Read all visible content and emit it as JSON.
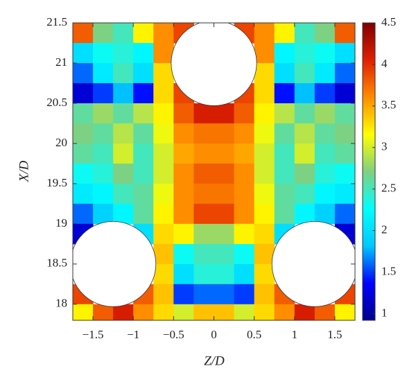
{
  "chart_data": {
    "type": "contour",
    "xlabel": "Z/D",
    "ylabel": "X/D",
    "xlim": [
      -1.75,
      1.75
    ],
    "ylim": [
      17.8,
      21.5
    ],
    "xticks": [
      {
        "value": -1.5,
        "label": "−1.5"
      },
      {
        "value": -1,
        "label": "−1"
      },
      {
        "value": -0.5,
        "label": "−0.5"
      },
      0,
      0.5,
      1,
      1.5
    ],
    "yticks": [
      18,
      18.5,
      19,
      19.5,
      20,
      20.5,
      21,
      21.5
    ],
    "clim": [
      0.92,
      4.5
    ],
    "cticks": [
      1,
      1.5,
      2,
      2.5,
      3,
      3.5,
      4,
      4.5
    ],
    "colormap": [
      "#00008f",
      "#0000ff",
      "#00c8ff",
      "#00ffff",
      "#80d080",
      "#ffff00",
      "#ff8c00",
      "#e02000",
      "#7f0000"
    ],
    "x": [
      -1.625,
      -1.375,
      -1.125,
      -0.875,
      -0.625,
      -0.375,
      -0.125,
      0.125,
      0.375,
      0.625,
      0.875,
      1.125,
      1.375,
      1.625
    ],
    "y": [
      21.375,
      21.125,
      20.875,
      20.625,
      20.375,
      20.125,
      19.875,
      19.625,
      19.375,
      19.125,
      18.875,
      18.625,
      18.375,
      18.125,
      17.875
    ],
    "z": [
      [
        3.8,
        2.7,
        2.5,
        3.2,
        3.6,
        3.9,
        null,
        null,
        3.9,
        3.6,
        3.2,
        2.5,
        2.7,
        3.8
      ],
      [
        2.0,
        2.3,
        2.4,
        2.2,
        3.6,
        null,
        null,
        null,
        null,
        3.6,
        2.2,
        2.4,
        2.3,
        2.0
      ],
      [
        1.6,
        2.1,
        2.5,
        2.0,
        3.3,
        null,
        null,
        null,
        null,
        3.3,
        2.0,
        2.5,
        2.1,
        1.6
      ],
      [
        1.2,
        1.5,
        1.8,
        1.4,
        3.3,
        3.9,
        null,
        null,
        3.9,
        3.3,
        1.4,
        1.8,
        1.5,
        1.2
      ],
      [
        2.6,
        2.8,
        2.6,
        2.9,
        3.2,
        3.8,
        4.1,
        4.1,
        3.8,
        3.2,
        2.9,
        2.6,
        2.8,
        2.6
      ],
      [
        2.7,
        2.6,
        2.9,
        2.6,
        3.1,
        3.6,
        3.7,
        3.7,
        3.6,
        3.1,
        2.6,
        2.9,
        2.6,
        2.7
      ],
      [
        2.6,
        2.5,
        3.0,
        2.5,
        3.0,
        3.5,
        3.6,
        3.6,
        3.5,
        3.0,
        2.5,
        3.0,
        2.5,
        2.6
      ],
      [
        2.3,
        2.4,
        2.7,
        2.5,
        3.0,
        3.6,
        3.8,
        3.8,
        3.6,
        3.0,
        2.5,
        2.7,
        2.4,
        2.3
      ],
      [
        2.1,
        2.2,
        2.5,
        2.6,
        3.1,
        3.6,
        3.7,
        3.7,
        3.6,
        3.1,
        2.6,
        2.5,
        2.2,
        2.1
      ],
      [
        1.6,
        1.9,
        2.2,
        2.6,
        3.2,
        3.6,
        3.9,
        3.9,
        3.6,
        3.2,
        2.6,
        2.2,
        1.9,
        1.6
      ],
      [
        1.2,
        null,
        null,
        2.0,
        3.3,
        3.2,
        2.8,
        2.8,
        3.2,
        3.3,
        2.0,
        null,
        null,
        1.2
      ],
      [
        null,
        null,
        null,
        null,
        3.4,
        2.3,
        2.5,
        2.5,
        2.3,
        3.4,
        null,
        null,
        null,
        null
      ],
      [
        null,
        null,
        null,
        null,
        3.3,
        2.0,
        2.4,
        2.4,
        2.0,
        3.3,
        null,
        null,
        null,
        null
      ],
      [
        3.9,
        null,
        null,
        3.8,
        3.4,
        1.5,
        1.6,
        1.6,
        1.5,
        3.4,
        3.8,
        null,
        null,
        3.9
      ],
      [
        3.2,
        3.8,
        4.1,
        3.6,
        3.3,
        3.0,
        3.4,
        3.4,
        3.0,
        3.3,
        3.6,
        4.1,
        3.8,
        3.2
      ]
    ],
    "cylinders": [
      {
        "x": 0,
        "y": 21,
        "r": 0.53
      },
      {
        "x": -1.25,
        "y": 18.5,
        "r": 0.53
      },
      {
        "x": 1.25,
        "y": 18.5,
        "r": 0.53
      }
    ]
  }
}
